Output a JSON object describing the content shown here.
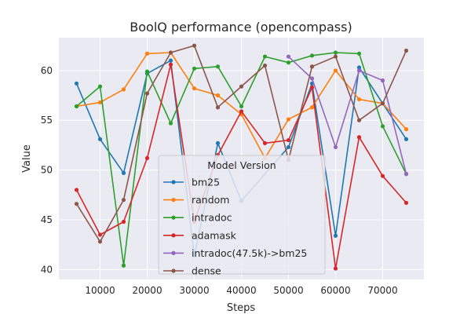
{
  "chart_data": {
    "type": "line",
    "title": "BoolQ performance (opencompass)",
    "xlabel": "Steps",
    "ylabel": "Value",
    "xlim": [
      1250,
      78750
    ],
    "ylim": [
      39.0,
      63.3
    ],
    "xticks": [
      10000,
      20000,
      30000,
      40000,
      50000,
      60000,
      70000
    ],
    "xtick_labels": [
      "10000",
      "20000",
      "30000",
      "40000",
      "50000",
      "60000",
      "70000"
    ],
    "yticks": [
      40,
      45,
      50,
      55,
      60
    ],
    "ytick_labels": [
      "40",
      "45",
      "50",
      "55",
      "60"
    ],
    "grid": true,
    "legend": {
      "title": "Model Version",
      "placement": "center"
    },
    "series": [
      {
        "name": "bm25",
        "color": "#1f77b4",
        "x": [
          5000,
          10000,
          15000,
          20000,
          25000,
          30000,
          35000,
          40000,
          50000,
          55000,
          60000,
          65000,
          70000,
          75000
        ],
        "y": [
          58.7,
          53.1,
          49.7,
          59.7,
          61.0,
          41.4,
          52.7,
          46.9,
          52.3,
          58.7,
          43.4,
          60.3,
          56.7,
          53.1
        ]
      },
      {
        "name": "random",
        "color": "#ff7f0e",
        "x": [
          5000,
          10000,
          15000,
          20000,
          25000,
          30000,
          35000,
          40000,
          45000,
          50000,
          55000,
          60000,
          65000,
          70000,
          75000
        ],
        "y": [
          56.4,
          56.8,
          58.1,
          61.7,
          61.8,
          58.2,
          57.5,
          55.6,
          51.2,
          55.1,
          56.3,
          60.0,
          57.1,
          56.7,
          54.1
        ]
      },
      {
        "name": "intradoc",
        "color": "#2ca02c",
        "x": [
          5000,
          10000,
          15000,
          20000,
          25000,
          30000,
          35000,
          40000,
          45000,
          50000,
          55000,
          60000,
          65000,
          70000,
          75000
        ],
        "y": [
          56.4,
          58.4,
          40.4,
          59.9,
          54.7,
          60.2,
          60.4,
          56.4,
          61.4,
          60.8,
          61.5,
          61.8,
          61.7,
          54.4,
          49.6
        ]
      },
      {
        "name": "adamask",
        "color": "#d62728",
        "x": [
          5000,
          10000,
          15000,
          20000,
          25000,
          30000,
          35000,
          40000,
          45000,
          50000,
          55000,
          60000,
          65000,
          70000,
          75000
        ],
        "y": [
          48.0,
          43.5,
          44.8,
          51.2,
          60.6,
          44.8,
          51.5,
          55.9,
          52.7,
          53.0,
          58.3,
          40.1,
          53.3,
          49.4,
          46.7
        ]
      },
      {
        "name": "intradoc(47.5k)->bm25",
        "color": "#9467bd",
        "x": [
          50000,
          55000,
          60000,
          65000,
          70000,
          75000
        ],
        "y": [
          61.4,
          59.2,
          52.3,
          60.0,
          59.0,
          49.6
        ]
      },
      {
        "name": "dense",
        "color": "#8c564b",
        "x": [
          5000,
          10000,
          15000,
          20000,
          25000,
          30000,
          35000,
          40000,
          45000,
          50000,
          55000,
          60000,
          65000,
          70000,
          75000
        ],
        "y": [
          46.6,
          42.8,
          47.0,
          57.7,
          61.8,
          62.5,
          56.3,
          58.4,
          60.5,
          51.0,
          60.4,
          61.4,
          55.0,
          56.7,
          62.0
        ]
      }
    ]
  }
}
